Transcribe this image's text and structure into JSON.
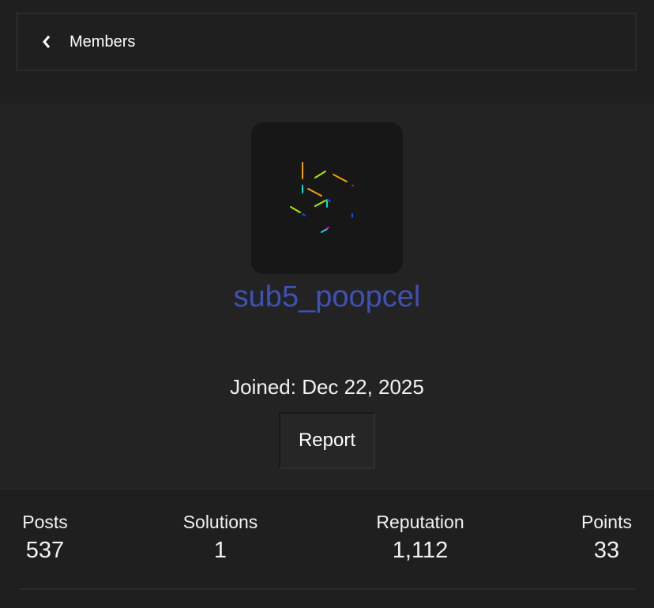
{
  "nav": {
    "back_label": "Members",
    "back_icon": "chevron-left-icon"
  },
  "profile": {
    "username": "sub5_poopcel",
    "username_color": "#3f51b5",
    "joined": "Joined: Dec 22, 2025",
    "report_label": "Report"
  },
  "stats": [
    {
      "label": "Posts",
      "value": "537"
    },
    {
      "label": "Solutions",
      "value": "1"
    },
    {
      "label": "Reputation",
      "value": "1,112"
    },
    {
      "label": "Points",
      "value": "33"
    }
  ]
}
